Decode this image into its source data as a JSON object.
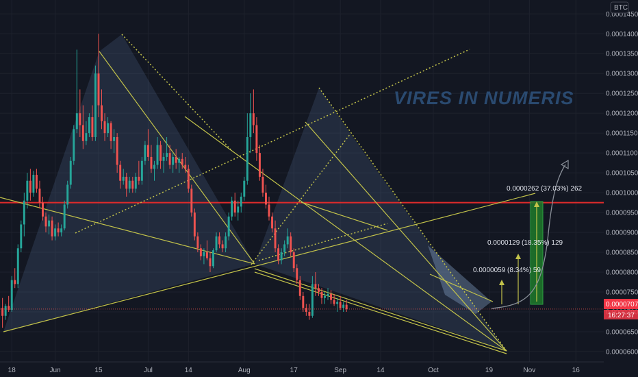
{
  "chart_data": {
    "type": "candlestick",
    "pair_quote": "BTC",
    "watermark": "VIRES IN NUMERIS",
    "y_ticks": [
      "0.0000600",
      "0.0000650",
      "0.0000700",
      "0.0000750",
      "0.0000800",
      "0.0000850",
      "0.0000900",
      "0.0000950",
      "0.0001000",
      "0.0001050",
      "0.0001100",
      "0.0001150",
      "0.0001200",
      "0.0001250",
      "0.0001300",
      "0.0001350",
      "0.0001400",
      "0.0001450"
    ],
    "y_tick_values": [
      6e-05,
      6.5e-05,
      7e-05,
      7.5e-05,
      8e-05,
      8.5e-05,
      9e-05,
      9.5e-05,
      0.0001,
      0.000105,
      0.00011,
      0.000115,
      0.00012,
      0.000125,
      0.00013,
      0.000135,
      0.00014,
      0.000145
    ],
    "ylim": [
      5.74e-05,
      0.0001485
    ],
    "x_ticks": [
      {
        "label": "18",
        "day": 0
      },
      {
        "label": "Jun",
        "day": 14
      },
      {
        "label": "15",
        "day": 28
      },
      {
        "label": "Jul",
        "day": 44
      },
      {
        "label": "14",
        "day": 57
      },
      {
        "label": "Aug",
        "day": 75
      },
      {
        "label": "17",
        "day": 91
      },
      {
        "label": "Sep",
        "day": 106
      },
      {
        "label": "14",
        "day": 119
      },
      {
        "label": "Oct",
        "day": 136
      },
      {
        "label": "19",
        "day": 154
      },
      {
        "label": "Nov",
        "day": 167
      },
      {
        "label": "16",
        "day": 182
      }
    ],
    "xlim": [
      -3.8,
      191
    ],
    "current_price": "0.0000707",
    "current_price_value": 7.07e-05,
    "countdown": "16:27:37",
    "resistance_level": 9.75e-05,
    "candles": [
      [
        -3,
        7.1e-05,
        7.35e-05,
        6.6e-05,
        6.9e-05
      ],
      [
        -2,
        6.9e-05,
        7.2e-05,
        6.8e-05,
        7.15e-05
      ],
      [
        -1,
        7.15e-05,
        7.4e-05,
        7e-05,
        7.05e-05
      ],
      [
        0,
        7.05e-05,
        7.9e-05,
        7e-05,
        7.8e-05
      ],
      [
        1,
        7.8e-05,
        8.1e-05,
        7.6e-05,
        7.7e-05
      ],
      [
        2,
        7.7e-05,
        8.7e-05,
        7.6e-05,
        8.6e-05
      ],
      [
        3,
        8.6e-05,
        9.3e-05,
        8.5e-05,
        9.2e-05
      ],
      [
        4,
        9.2e-05,
        0.0001,
        8.9e-05,
        9.8e-05
      ],
      [
        5,
        9.8e-05,
        0.000105,
        9.6e-05,
        0.000103
      ],
      [
        6,
        0.000103,
        0.000106,
        9.8e-05,
        0.0001
      ],
      [
        7,
        0.0001,
        0.0001055,
        9.9e-05,
        0.0001045
      ],
      [
        8,
        0.0001045,
        0.000106,
        0.0001,
        0.000101
      ],
      [
        9,
        0.000101,
        0.000103,
        9.6e-05,
        9.75e-05
      ],
      [
        10,
        9.75e-05,
        9.9e-05,
        9.3e-05,
        9.4e-05
      ],
      [
        11,
        9.4e-05,
        9.5e-05,
        9e-05,
        9.15e-05
      ],
      [
        12,
        9.15e-05,
        9.45e-05,
        8.95e-05,
        9.3e-05
      ],
      [
        13,
        9.3e-05,
        9.4e-05,
        8.8e-05,
        8.9e-05
      ],
      [
        14,
        8.9e-05,
        9.2e-05,
        8.8e-05,
        9.1e-05
      ],
      [
        15,
        9.1e-05,
        9.25e-05,
        8.9e-05,
        9e-05
      ],
      [
        16,
        9e-05,
        9.2e-05,
        8.9e-05,
        9.1e-05
      ],
      [
        17,
        9.1e-05,
        9.8e-05,
        9.05e-05,
        9.7e-05
      ],
      [
        18,
        9.7e-05,
        0.000103,
        9.6e-05,
        0.000102
      ],
      [
        19,
        0.000102,
        0.000109,
        0.000101,
        0.000108
      ],
      [
        20,
        0.000108,
        0.000117,
        0.000107,
        0.000116
      ],
      [
        21,
        0.000116,
        0.000136,
        0.000115,
        0.00012
      ],
      [
        22,
        0.00012,
        0.000126,
        0.000114,
        0.000117
      ],
      [
        23,
        0.000117,
        0.000122,
        0.000111,
        0.000113
      ],
      [
        24,
        0.000113,
        0.000118,
        0.000112,
        0.000115
      ],
      [
        25,
        0.000115,
        0.00012,
        0.000114,
        0.000119
      ],
      [
        26,
        0.000119,
        0.000122,
        0.000113,
        0.000114
      ],
      [
        27,
        0.000114,
        0.000132,
        0.000113,
        0.00013
      ],
      [
        28,
        0.00013,
        0.00014,
        0.000119,
        0.000122
      ],
      [
        29,
        0.000122,
        0.000126,
        0.000116,
        0.000118
      ],
      [
        30,
        0.000118,
        0.00012,
        0.000113,
        0.000115
      ],
      [
        31,
        0.000115,
        0.000119,
        0.000114,
        0.0001175
      ],
      [
        32,
        0.0001175,
        0.000118,
        0.000111,
        0.000113
      ],
      [
        33,
        0.000113,
        0.000116,
        0.00011,
        0.000114
      ],
      [
        34,
        0.000114,
        0.000115,
        0.000105,
        0.000107
      ],
      [
        35,
        0.000107,
        0.000108,
        0.000101,
        0.000103
      ],
      [
        36,
        0.000103,
        0.000106,
        0.000102,
        0.000104
      ],
      [
        37,
        0.000104,
        0.000105,
        9.9e-05,
        0.000101
      ],
      [
        38,
        0.000101,
        0.000104,
        0.0001,
        0.000103
      ],
      [
        39,
        0.000103,
        0.000104,
        0.0001,
        0.000101
      ],
      [
        40,
        0.000101,
        0.000105,
        0.0001,
        0.000104
      ],
      [
        41,
        0.000104,
        0.000108,
        0.000102,
        0.000103
      ],
      [
        42,
        0.000103,
        0.000109,
        0.000102,
        0.000108
      ],
      [
        43,
        0.000108,
        0.000113,
        0.000107,
        0.000112
      ],
      [
        44,
        0.000112,
        0.000116,
        0.000108,
        0.000109
      ],
      [
        45,
        0.000109,
        0.000112,
        0.000105,
        0.000106
      ],
      [
        46,
        0.000106,
        0.000108,
        0.000103,
        0.000107
      ],
      [
        47,
        0.000107,
        0.000114,
        0.000106,
        0.000112
      ],
      [
        48,
        0.000112,
        0.000113,
        0.000106,
        0.000108
      ],
      [
        49,
        0.000108,
        0.00011,
        0.000105,
        0.000109
      ],
      [
        50,
        0.000109,
        0.000114,
        0.000108,
        0.00011
      ],
      [
        51,
        0.00011,
        0.000112,
        0.000106,
        0.000107
      ],
      [
        52,
        0.000107,
        0.00011,
        0.000105,
        0.000109
      ],
      [
        53,
        0.000109,
        0.000111,
        0.000106,
        0.0001075
      ],
      [
        54,
        0.0001075,
        0.000109,
        0.000105,
        0.0001085
      ],
      [
        55,
        0.0001085,
        0.00011,
        0.000106,
        0.000107
      ],
      [
        56,
        0.000107,
        0.000109,
        0.000105,
        0.000106
      ],
      [
        57,
        0.000106,
        0.000107,
        0.0001,
        0.000101
      ],
      [
        58,
        0.000101,
        0.000102,
        9.4e-05,
        9.5e-05
      ],
      [
        59,
        9.5e-05,
        9.6e-05,
        8.8e-05,
        8.9e-05
      ],
      [
        60,
        8.9e-05,
        9e-05,
        8.5e-05,
        8.6e-05
      ],
      [
        61,
        8.6e-05,
        8.7e-05,
        8.3e-05,
        8.4e-05
      ],
      [
        62,
        8.4e-05,
        8.6e-05,
        8.2e-05,
        8.5e-05
      ],
      [
        63,
        8.5e-05,
        8.8e-05,
        8.3e-05,
        8.35e-05
      ],
      [
        64,
        8.35e-05,
        8.5e-05,
        8e-05,
        8.15e-05
      ],
      [
        65,
        8.15e-05,
        8.6e-05,
        8.1e-05,
        8.55e-05
      ],
      [
        66,
        8.55e-05,
        9e-05,
        8.5e-05,
        8.9e-05
      ],
      [
        67,
        8.9e-05,
        9e-05,
        8.6e-05,
        8.7e-05
      ],
      [
        68,
        8.7e-05,
        8.8e-05,
        8.5e-05,
        8.6e-05
      ],
      [
        69,
        8.6e-05,
        9e-05,
        8.5e-05,
        8.9e-05
      ],
      [
        70,
        8.9e-05,
        9.5e-05,
        8.8e-05,
        9.4e-05
      ],
      [
        71,
        9.4e-05,
        9.9e-05,
        9.3e-05,
        9.8e-05
      ],
      [
        72,
        9.8e-05,
        0.0001,
        9.4e-05,
        9.5e-05
      ],
      [
        73,
        9.5e-05,
        9.8e-05,
        9.3e-05,
        9.65e-05
      ],
      [
        74,
        9.65e-05,
        0.0001,
        9.5e-05,
        9.9e-05
      ],
      [
        75,
        9.9e-05,
        0.000104,
        9.8e-05,
        0.000103
      ],
      [
        76,
        0.000103,
        0.00012,
        0.000102,
        0.000114
      ],
      [
        77,
        0.000114,
        0.000125,
        0.00011,
        0.00012
      ],
      [
        78,
        0.00012,
        0.000126,
        0.000115,
        0.000117
      ],
      [
        79,
        0.000117,
        0.000119,
        0.000108,
        0.00011
      ],
      [
        80,
        0.00011,
        0.000112,
        0.000103,
        0.000104
      ],
      [
        81,
        0.000104,
        0.000106,
        9.9e-05,
        0.0001
      ],
      [
        82,
        0.0001,
        0.000102,
        9.6e-05,
        9.7e-05
      ],
      [
        83,
        9.7e-05,
        9.9e-05,
        9.3e-05,
        9.4e-05
      ],
      [
        84,
        9.4e-05,
        9.5e-05,
        9e-05,
        9.1e-05
      ],
      [
        85,
        9.1e-05,
        9.3e-05,
        8.5e-05,
        8.6e-05
      ],
      [
        86,
        8.6e-05,
        8.7e-05,
        8.2e-05,
        8.3e-05
      ],
      [
        87,
        8.3e-05,
        8.6e-05,
        8.2e-05,
        8.5e-05
      ],
      [
        88,
        8.5e-05,
        8.8e-05,
        8.4e-05,
        8.7e-05
      ],
      [
        89,
        8.7e-05,
        9.1e-05,
        8.6e-05,
        8.9e-05
      ],
      [
        90,
        8.9e-05,
        9e-05,
        8.4e-05,
        8.5e-05
      ],
      [
        91,
        8.5e-05,
        8.6e-05,
        8e-05,
        8.1e-05
      ],
      [
        92,
        8.1e-05,
        8.2e-05,
        7.7e-05,
        7.8e-05
      ],
      [
        93,
        7.8e-05,
        7.9e-05,
        7.3e-05,
        7.4e-05
      ],
      [
        94,
        7.4e-05,
        7.5e-05,
        7e-05,
        7.1e-05
      ],
      [
        95,
        7.1e-05,
        7.2e-05,
        6.9e-05,
        7e-05
      ],
      [
        96,
        7e-05,
        7.2e-05,
        6.8e-05,
        6.9e-05
      ],
      [
        97,
        6.9e-05,
        7.9e-05,
        6.85e-05,
        7.7e-05
      ],
      [
        98,
        7.7e-05,
        8e-05,
        7.4e-05,
        7.6e-05
      ],
      [
        99,
        7.6e-05,
        7.7e-05,
        7.4e-05,
        7.5e-05
      ],
      [
        100,
        7.5e-05,
        7.6e-05,
        7.2e-05,
        7.35e-05
      ],
      [
        101,
        7.35e-05,
        7.5e-05,
        7.2e-05,
        7.4e-05
      ],
      [
        102,
        7.4e-05,
        7.6e-05,
        7.3e-05,
        7.45e-05
      ],
      [
        103,
        7.45e-05,
        7.55e-05,
        7.2e-05,
        7.3e-05
      ],
      [
        104,
        7.3e-05,
        7.45e-05,
        7.15e-05,
        7.2e-05
      ],
      [
        105,
        7.2e-05,
        7.35e-05,
        7e-05,
        7.25e-05
      ],
      [
        106,
        7.25e-05,
        7.4e-05,
        7.05e-05,
        7.1e-05
      ],
      [
        107,
        7.1e-05,
        7.25e-05,
        7e-05,
        7.18e-05
      ],
      [
        108,
        7.18e-05,
        7.3e-05,
        7e-05,
        7.07e-05
      ]
    ]
  }
}
